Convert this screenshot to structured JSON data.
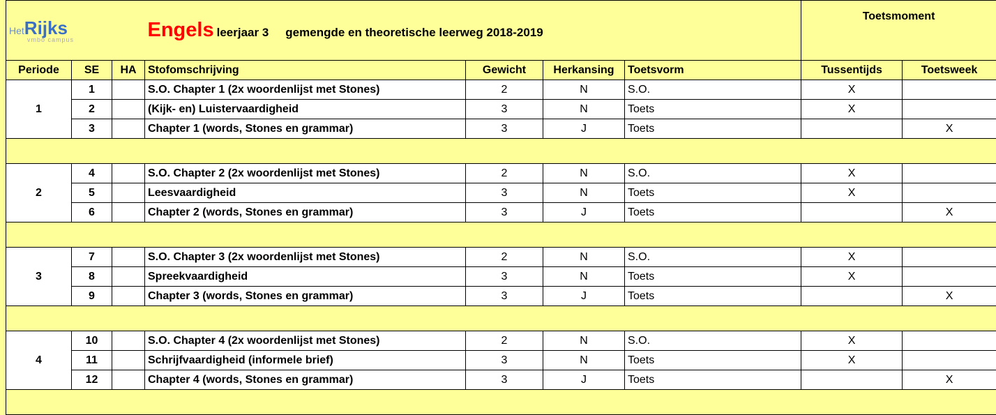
{
  "header": {
    "logo": {
      "prefix": "Het",
      "name": "Rijks",
      "sub": "vmbo campus"
    },
    "subject": "Engels",
    "year": "leerjaar 3",
    "track": "gemengde en theoretische leerweg 2018-2019",
    "moment": "Toetsmoment"
  },
  "columns": [
    "Periode",
    "SE",
    "HA",
    "Stofomschrijving",
    "Gewicht",
    "Herkansing",
    "Toetsvorm",
    "Tussentijds",
    "Toetsweek"
  ],
  "periods": [
    {
      "periode": "1",
      "rows": [
        {
          "se": "1",
          "stof": "S.O. Chapter 1 (2x woordenlijst met Stones)",
          "gewicht": "2",
          "herkansing": "N",
          "toetsvorm": "S.O.",
          "tussentijds": "X"
        },
        {
          "se": "2",
          "stof": "(Kijk- en) Luistervaardigheid",
          "gewicht": "3",
          "herkansing": "N",
          "toetsvorm": "Toets",
          "tussentijds": "X"
        },
        {
          "se": "3",
          "stof": "Chapter 1 (words, Stones en grammar)",
          "gewicht": "3",
          "herkansing": "J",
          "toetsvorm": "Toets",
          "toetsweek": "X"
        }
      ]
    },
    {
      "periode": "2",
      "rows": [
        {
          "se": "4",
          "stof": "S.O. Chapter 2 (2x woordenlijst met Stones)",
          "gewicht": "2",
          "herkansing": "N",
          "toetsvorm": "S.O.",
          "tussentijds": "X"
        },
        {
          "se": "5",
          "stof": "Leesvaardigheid",
          "gewicht": "3",
          "herkansing": "N",
          "toetsvorm": "Toets",
          "tussentijds": "X"
        },
        {
          "se": "6",
          "stof": "Chapter 2 (words, Stones en grammar)",
          "gewicht": "3",
          "herkansing": "J",
          "toetsvorm": "Toets",
          "toetsweek": "X"
        }
      ]
    },
    {
      "periode": "3",
      "rows": [
        {
          "se": "7",
          "stof": "S.O. Chapter 3 (2x woordenlijst met Stones)",
          "gewicht": "2",
          "herkansing": "N",
          "toetsvorm": "S.O.",
          "tussentijds": "X"
        },
        {
          "se": "8",
          "stof": "Spreekvaardigheid",
          "gewicht": "3",
          "herkansing": "N",
          "toetsvorm": "Toets",
          "tussentijds": "X"
        },
        {
          "se": "9",
          "stof": "Chapter 3 (words, Stones en grammar)",
          "gewicht": "3",
          "herkansing": "J",
          "toetsvorm": "Toets",
          "toetsweek": "X"
        }
      ]
    },
    {
      "periode": "4",
      "rows": [
        {
          "se": "10",
          "stof": "S.O. Chapter 4 (2x woordenlijst met Stones)",
          "gewicht": "2",
          "herkansing": "N",
          "toetsvorm": "S.O.",
          "tussentijds": "X"
        },
        {
          "se": "11",
          "stof": "Schrijfvaardigheid (informele brief)",
          "gewicht": "3",
          "herkansing": "N",
          "toetsvorm": "Toets",
          "tussentijds": "X"
        },
        {
          "se": "12",
          "stof": "Chapter 4 (words, Stones en grammar)",
          "gewicht": "3",
          "herkansing": "J",
          "toetsvorm": "Toets",
          "toetsweek": "X"
        }
      ]
    }
  ]
}
